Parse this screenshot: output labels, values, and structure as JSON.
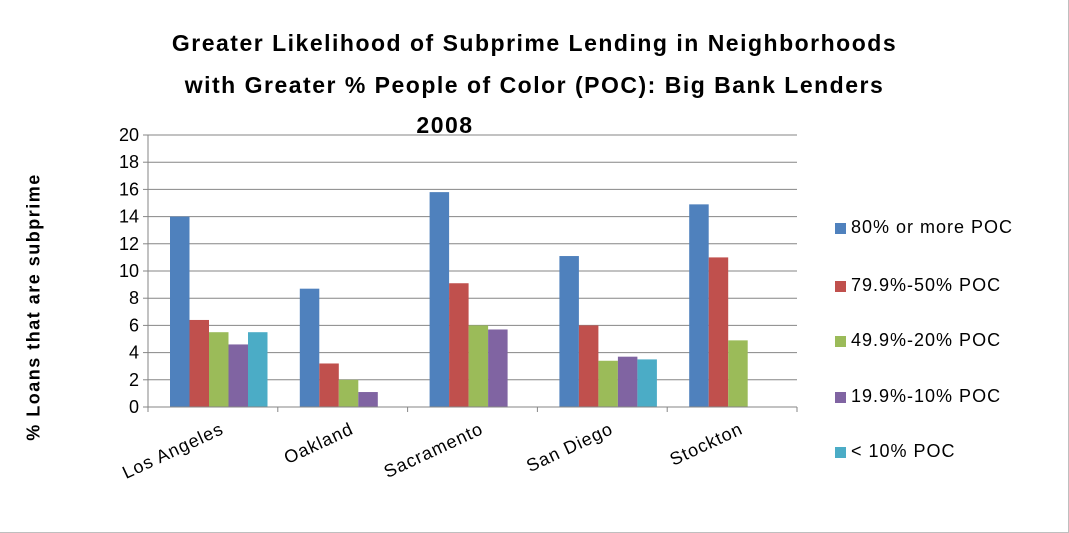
{
  "chart_data": {
    "type": "bar",
    "title_lines": [
      "Greater Likelihood of Subprime Lending in Neighborhoods",
      "with Greater % People of Color (POC): Big Bank Lenders",
      "2008"
    ],
    "ylabel": "% Loans that are subprime",
    "ylim": [
      0,
      20
    ],
    "yticks": [
      0,
      2,
      4,
      6,
      8,
      10,
      12,
      14,
      16,
      18,
      20
    ],
    "categories": [
      "Los Angeles",
      "Oakland",
      "Sacramento",
      "San Diego",
      "Stockton"
    ],
    "series": [
      {
        "name": "80% or more POC",
        "color": "#4f81bd",
        "values": [
          14.0,
          8.7,
          15.8,
          11.1,
          14.9
        ]
      },
      {
        "name": "79.9%-50% POC",
        "color": "#c0504d",
        "values": [
          6.4,
          3.2,
          9.1,
          6.0,
          11.0
        ]
      },
      {
        "name": "49.9%-20% POC",
        "color": "#9bbb59",
        "values": [
          5.5,
          2.0,
          6.0,
          3.4,
          4.9
        ]
      },
      {
        "name": "19.9%-10% POC",
        "color": "#8064a2",
        "values": [
          4.6,
          1.1,
          5.7,
          3.7,
          null
        ]
      },
      {
        "name": "< 10% POC",
        "color": "#4bacc6",
        "values": [
          5.5,
          null,
          null,
          3.5,
          null
        ]
      }
    ],
    "grid": true,
    "legend_position": "right"
  }
}
